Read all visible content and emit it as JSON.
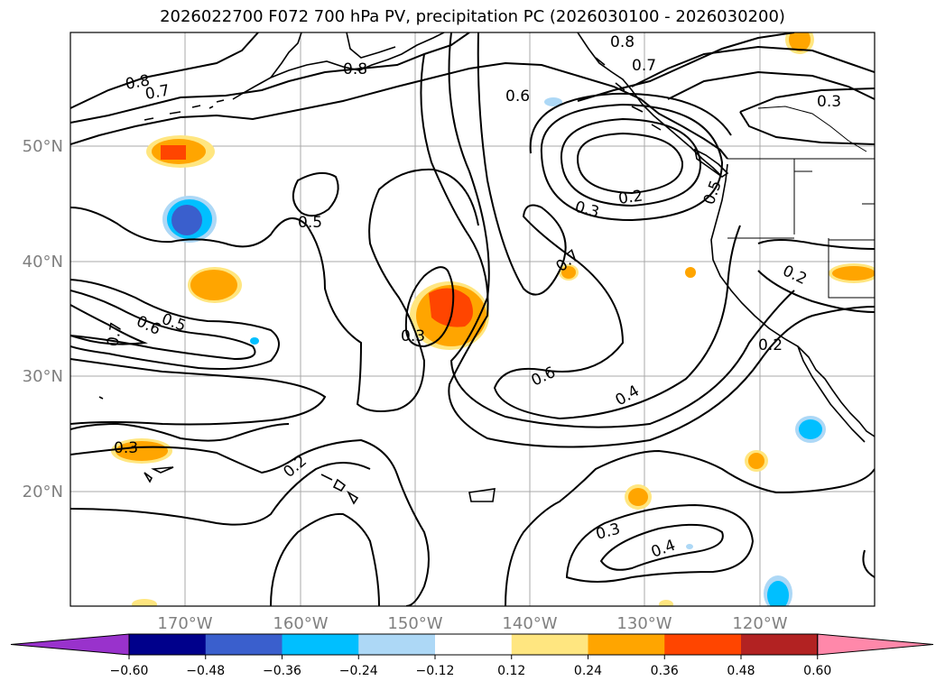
{
  "title": "2026022700 F072 700 hPa PV, precipitation PC (2026030100 - 2026030200)",
  "map": {
    "lat_ticks": [
      "50°N",
      "40°N",
      "30°N",
      "20°N"
    ],
    "lon_ticks": [
      "170°W",
      "160°W",
      "150°W",
      "140°W",
      "130°W",
      "120°W"
    ],
    "contour_labels": [
      {
        "t": "0.8"
      },
      {
        "t": "0.7"
      },
      {
        "t": "0.8"
      },
      {
        "t": "0.8"
      },
      {
        "t": "0.7"
      },
      {
        "t": "0.6"
      },
      {
        "t": "0.3"
      },
      {
        "t": "0.5"
      },
      {
        "t": "0.5"
      },
      {
        "t": "0.6"
      },
      {
        "t": "0.7"
      },
      {
        "t": "0.3"
      },
      {
        "t": "0.3"
      },
      {
        "t": "0.2"
      },
      {
        "t": "0.7"
      },
      {
        "t": "0.5"
      },
      {
        "t": "0.2"
      },
      {
        "t": "0.2"
      },
      {
        "t": "0.6"
      },
      {
        "t": "0.4"
      },
      {
        "t": "0.3"
      },
      {
        "t": "0.2"
      },
      {
        "t": "0.3"
      },
      {
        "t": "0.4"
      }
    ]
  },
  "colorbar": {
    "ticks": [
      "−0.60",
      "−0.48",
      "−0.36",
      "−0.24",
      "−0.12",
      "0.12",
      "0.24",
      "0.36",
      "0.48",
      "0.60"
    ],
    "colors": [
      "#9932cc",
      "#00008b",
      "#3a5fcd",
      "#00bfff",
      "#add8f6",
      "#ffffff",
      "#ffe680",
      "#ffa500",
      "#ff4500",
      "#b22222",
      "#ff88aa"
    ]
  }
}
